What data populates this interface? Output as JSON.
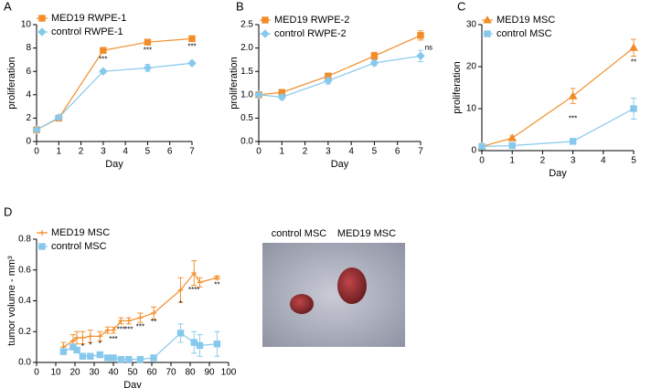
{
  "chart_data": [
    {
      "type": "line",
      "panel": "A",
      "ylabel": "proliferation",
      "xlabel": "Day",
      "x": [
        0,
        1,
        3,
        5,
        7
      ],
      "xlim": [
        0,
        7
      ],
      "xticks": [
        0,
        1,
        2,
        3,
        4,
        5,
        6,
        7
      ],
      "ylim": [
        0,
        10
      ],
      "yticks": [
        0,
        2,
        4,
        6,
        8,
        10
      ],
      "series": [
        {
          "name": "MED19 RWPE-1",
          "color": "#f28c28",
          "marker": "square",
          "values": [
            1,
            2,
            7.8,
            8.5,
            8.8
          ],
          "errors": [
            0,
            0.1,
            0.15,
            0.15,
            0.15
          ]
        },
        {
          "name": "control RWPE-1",
          "color": "#86c9ec",
          "marker": "diamond",
          "values": [
            1,
            2.05,
            6.0,
            6.3,
            6.7
          ],
          "errors": [
            0,
            0.1,
            0.15,
            0.3,
            0.15
          ]
        }
      ],
      "annotations": [
        {
          "text": "***",
          "x": 3,
          "y": 7.0
        },
        {
          "text": "***",
          "x": 5,
          "y": 7.8
        },
        {
          "text": "***",
          "x": 7,
          "y": 8.1
        }
      ]
    },
    {
      "type": "line",
      "panel": "B",
      "ylabel": "proliferation",
      "xlabel": "Day",
      "x": [
        0,
        1,
        3,
        5,
        7
      ],
      "xlim": [
        0,
        7
      ],
      "xticks": [
        0,
        1,
        2,
        3,
        4,
        5,
        6,
        7
      ],
      "ylim": [
        0,
        2.5
      ],
      "yticks": [
        {
          "value": 0,
          "label": "0.0"
        },
        0.5,
        {
          "value": 1,
          "label": "1.0"
        },
        1.5,
        {
          "value": 2,
          "label": "2.0"
        },
        2.5
      ],
      "series": [
        {
          "name": "MED19 RWPE-2",
          "color": "#f28c28",
          "marker": "square",
          "values": [
            1.0,
            1.05,
            1.4,
            1.83,
            2.27
          ],
          "errors": [
            0,
            0.05,
            0.06,
            0.08,
            0.1
          ]
        },
        {
          "name": "control RWPE-2",
          "color": "#86c9ec",
          "marker": "diamond",
          "values": [
            1.0,
            0.95,
            1.3,
            1.68,
            1.83
          ],
          "errors": [
            0,
            0.05,
            0.07,
            0.06,
            0.12
          ]
        }
      ],
      "annotations": [
        {
          "text": "ns",
          "x": 7.35,
          "y": 2.0
        }
      ]
    },
    {
      "type": "line",
      "panel": "C",
      "ylabel": "proliferation",
      "xlabel": "Day",
      "x": [
        0,
        1,
        3,
        5
      ],
      "xlim": [
        0,
        5
      ],
      "xticks": [
        0,
        1,
        2,
        3,
        4,
        5
      ],
      "ylim": [
        0,
        30
      ],
      "yticks": [
        0,
        10,
        20,
        30
      ],
      "series": [
        {
          "name": "MED19 MSC",
          "color": "#f28c28",
          "marker": "triangle",
          "values": [
            1,
            3,
            13,
            24.5
          ],
          "errors": [
            0,
            0.5,
            1.8,
            2
          ]
        },
        {
          "name": "control MSC",
          "color": "#86c9ec",
          "marker": "square",
          "values": [
            1,
            1.2,
            2.2,
            10
          ],
          "errors": [
            0,
            0.3,
            0.4,
            2.5
          ]
        }
      ],
      "annotations": [
        {
          "text": "***",
          "x": 3,
          "y": 7.5
        },
        {
          "text": "**",
          "x": 5,
          "y": 21
        }
      ]
    },
    {
      "type": "line",
      "panel": "D",
      "ylabel": "tumor volume - mm³",
      "xlabel": "Day",
      "x": [
        14,
        19,
        21,
        24,
        28,
        33,
        37,
        40,
        44,
        48,
        54,
        61,
        75,
        82,
        85,
        94
      ],
      "xlim": [
        0,
        100
      ],
      "xticks": [
        0,
        10,
        20,
        30,
        40,
        50,
        60,
        70,
        80,
        90,
        100
      ],
      "ylim": [
        0,
        0.8
      ],
      "yticks": [
        {
          "value": 0,
          "label": "0.0"
        },
        0.2,
        0.4,
        0.6,
        0.8
      ],
      "series": [
        {
          "name": "MED19 MSC",
          "color": "#f28c28",
          "marker": "plus",
          "values": [
            0.1,
            0.14,
            0.16,
            0.16,
            0.17,
            0.17,
            0.21,
            0.21,
            0.27,
            0.27,
            0.29,
            0.32,
            0.47,
            0.58,
            0.52,
            0.55
          ],
          "errors": [
            0.03,
            0.04,
            0.04,
            0.04,
            0.04,
            0.03,
            0.02,
            0.02,
            0.02,
            0.02,
            0.03,
            0.04,
            0.08,
            0.08,
            0.03,
            0.01
          ]
        },
        {
          "name": "control MSC",
          "color": "#86c9ec",
          "marker": "square",
          "values": [
            0.07,
            0.1,
            0.08,
            0.04,
            0.04,
            0.05,
            0.03,
            0.03,
            0.02,
            0.02,
            0.02,
            0.03,
            0.19,
            0.13,
            0.11,
            0.12
          ],
          "errors": [
            0.01,
            0.01,
            0.01,
            0.01,
            0.01,
            0.01,
            0.01,
            0.01,
            0.01,
            0.01,
            0.01,
            0.01,
            0.06,
            0.07,
            0.07,
            0.08
          ]
        }
      ],
      "annotations": [
        {
          "text": "*",
          "x": 24,
          "y": 0.1
        },
        {
          "text": "*",
          "x": 28,
          "y": 0.11
        },
        {
          "text": "*",
          "x": 33,
          "y": 0.12
        },
        {
          "text": "***",
          "x": 40,
          "y": 0.15
        },
        {
          "text": "***",
          "x": 44,
          "y": 0.21
        },
        {
          "text": "***",
          "x": 48,
          "y": 0.21
        },
        {
          "text": "***",
          "x": 54,
          "y": 0.23
        },
        {
          "text": "**",
          "x": 61,
          "y": 0.26
        },
        {
          "text": "*",
          "x": 75,
          "y": 0.38
        },
        {
          "text": "****",
          "x": 82,
          "y": 0.47
        },
        {
          "text": "**",
          "x": 94,
          "y": 0.5
        }
      ]
    }
  ],
  "photo": {
    "labels": [
      "control MSC",
      "MED19 MSC"
    ]
  }
}
